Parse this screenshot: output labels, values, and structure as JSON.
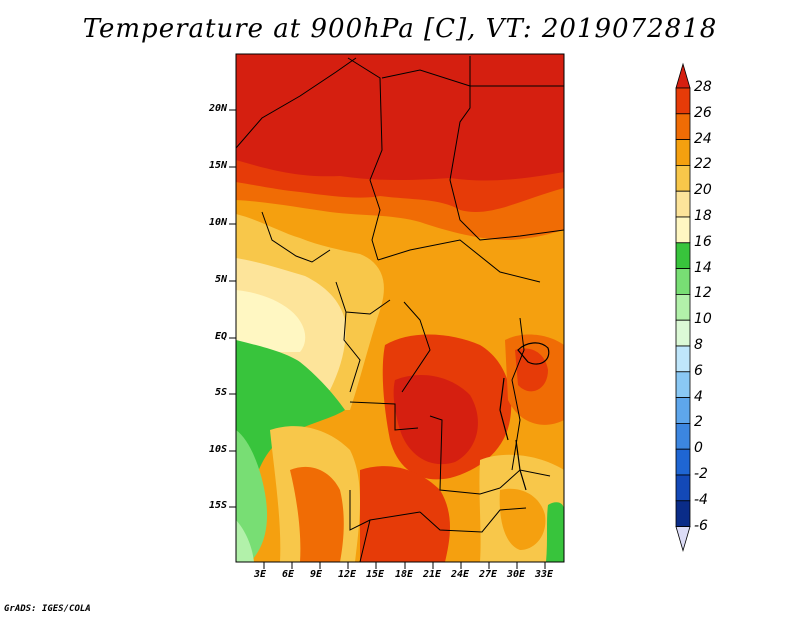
{
  "title": "Temperature at 900hPa [C], VT: 2019072818",
  "credit": "GrADS: IGES/COLA",
  "map": {
    "lat_labels": [
      "20N",
      "15N",
      "10N",
      "5N",
      "EQ",
      "5S",
      "10S",
      "15S"
    ],
    "lon_labels": [
      "3E",
      "6E",
      "9E",
      "12E",
      "15E",
      "18E",
      "21E",
      "24E",
      "27E",
      "30E",
      "33E"
    ]
  },
  "colorbar": {
    "labels": [
      "28",
      "26",
      "24",
      "22",
      "20",
      "18",
      "16",
      "14",
      "12",
      "10",
      "8",
      "6",
      "4",
      "2",
      "0",
      "-2",
      "-4",
      "-6"
    ],
    "colors": {
      "above_28": "#d51f10",
      "26-28": "#e63b08",
      "24-26": "#f06c05",
      "22-24": "#f5a00f",
      "20-22": "#f8c74a",
      "18-20": "#fde49a",
      "16-18": "#fff7c2",
      "14-16": "#38c43c",
      "12-14": "#78de74",
      "10-12": "#b2f1aa",
      "8-10": "#dcf9d6",
      "6-8": "#bfe6fb",
      "4-6": "#8ac8f4",
      "2-4": "#5ea6ec",
      "0-2": "#3c86e0",
      "-2-0": "#1f66d3",
      "-4--2": "#1349b7",
      "-6--4": "#0a2c88",
      "below_-6": "#dcdcf6"
    }
  }
}
